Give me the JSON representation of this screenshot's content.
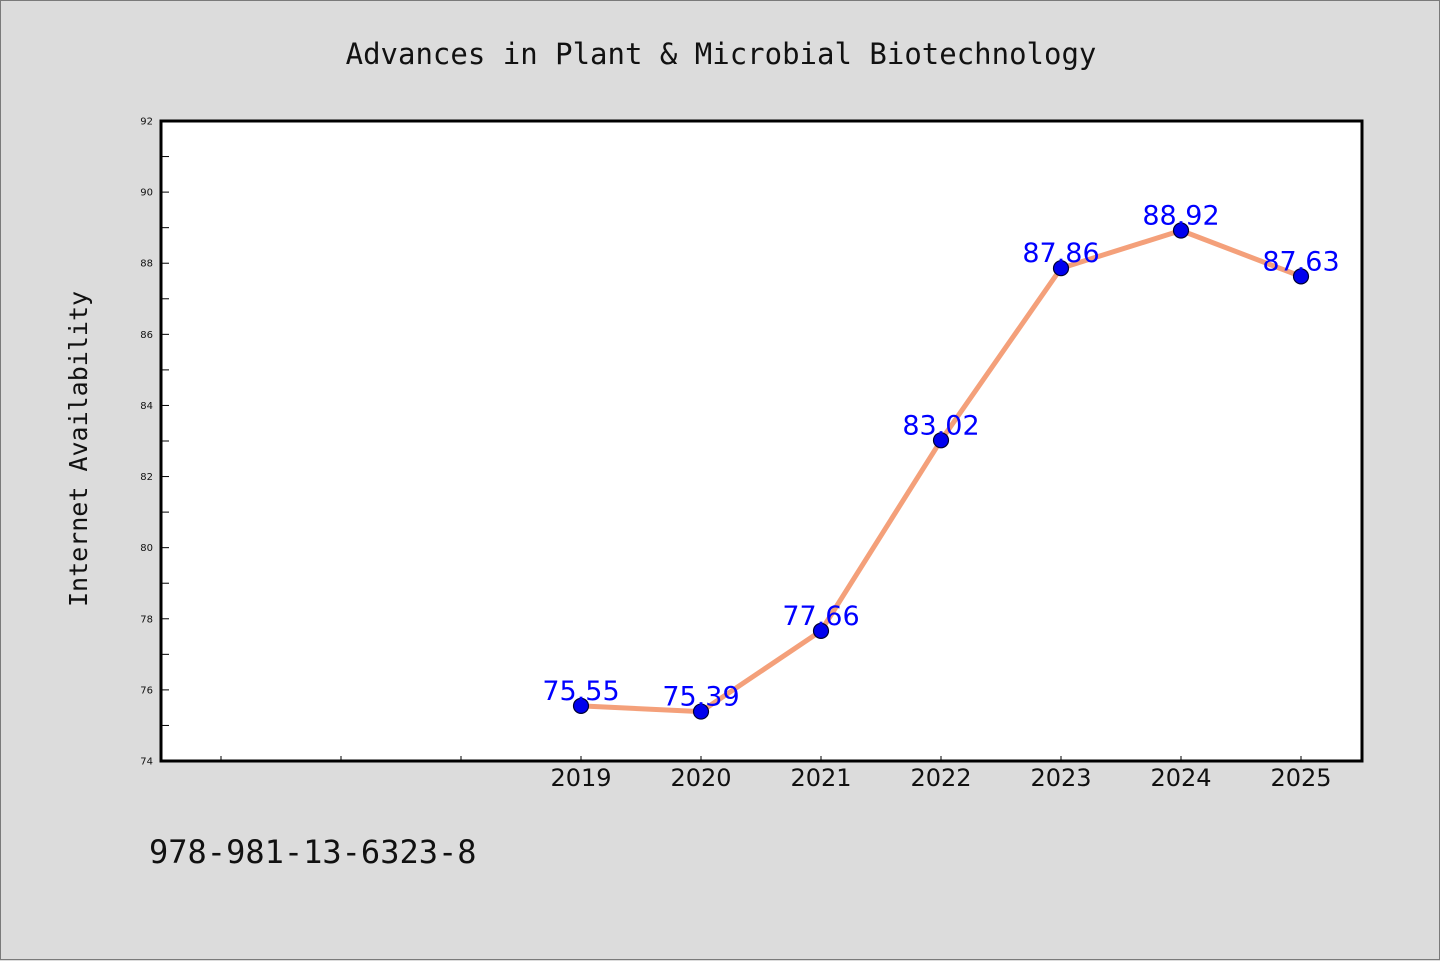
{
  "footer_code": "978-981-13-6323-8",
  "chart_data": {
    "type": "line",
    "title": "Advances in Plant & Microbial Biotechnology",
    "xlabel": "",
    "ylabel": "Internet Availability",
    "categories": [
      "",
      "",
      "",
      "2019",
      "2020",
      "2021",
      "2022",
      "2023",
      "2024",
      "2025"
    ],
    "x": [
      "2019",
      "2020",
      "2021",
      "2022",
      "2023",
      "2024",
      "2025"
    ],
    "values": [
      75.55,
      75.39,
      77.66,
      83.02,
      87.86,
      88.92,
      87.63
    ],
    "value_labels": [
      "75.55",
      "75.39",
      "77.66",
      "83.02",
      "87.86",
      "88.92",
      "87.63"
    ],
    "ylim": [
      74,
      92
    ],
    "yticks": [
      74,
      76,
      78,
      80,
      82,
      84,
      86,
      88,
      90,
      92
    ],
    "grid": false,
    "legend": "none",
    "colors": {
      "line": "#f4a07a",
      "marker": "#0000ee",
      "marker_edge": "#000033",
      "data_label": "#0000ff",
      "plot_background": "#ffffff",
      "figure_background": "#dcdcdc"
    }
  }
}
